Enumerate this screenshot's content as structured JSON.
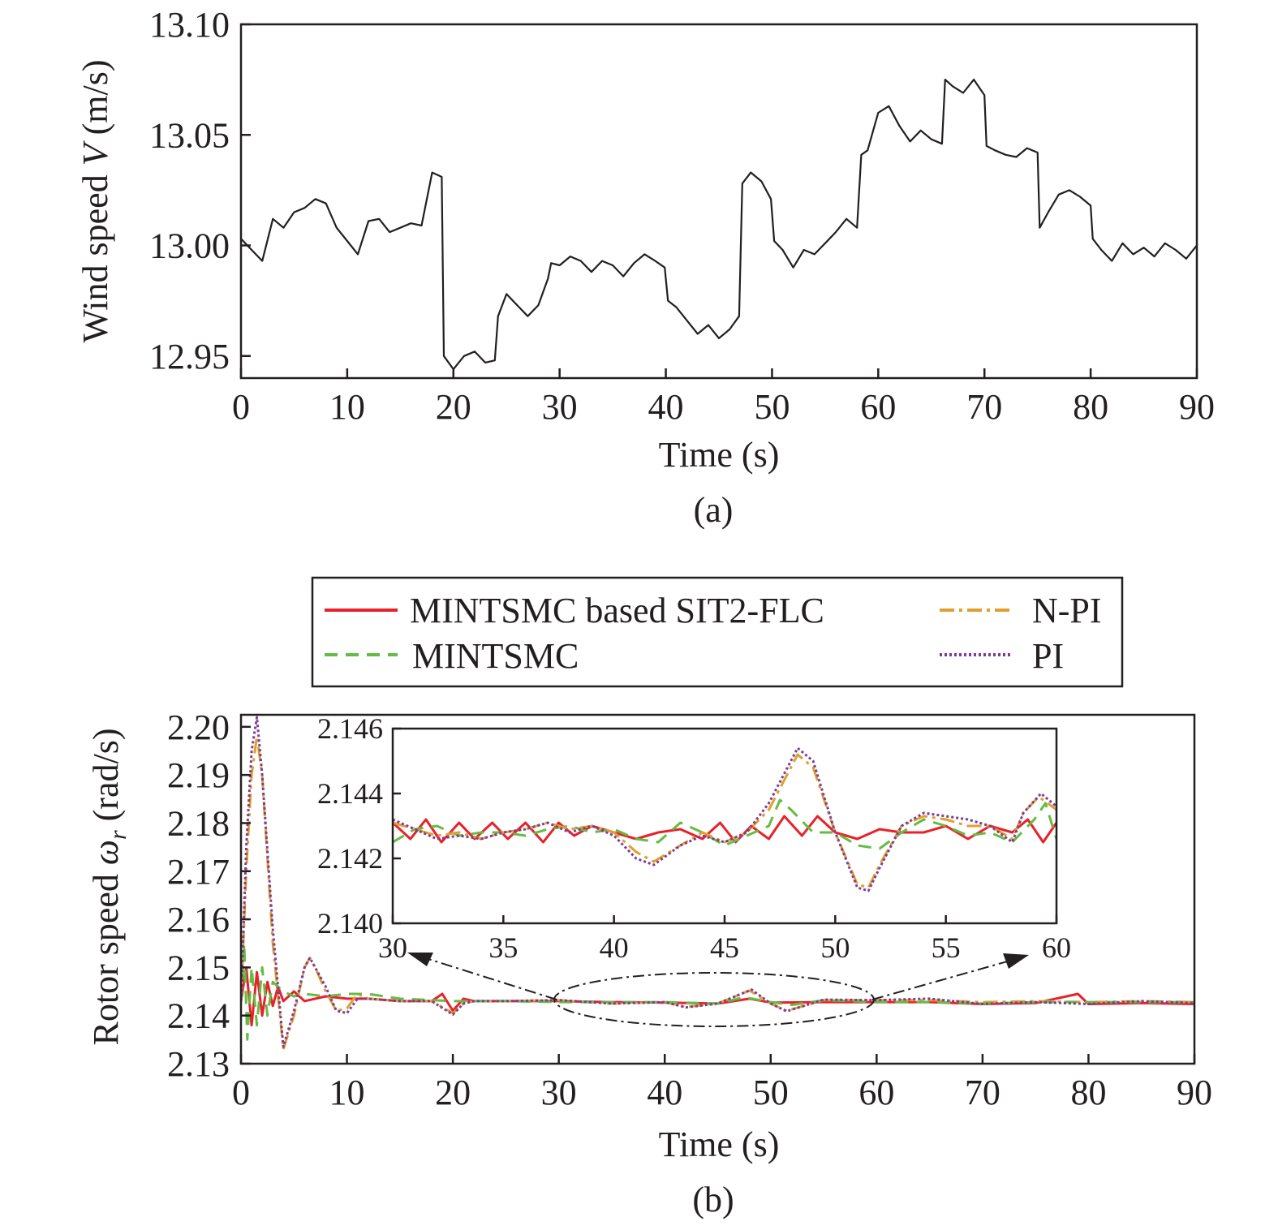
{
  "chart_data": [
    {
      "id": "a",
      "type": "line",
      "caption": "(a)",
      "xlabel": "Time (s)",
      "ylabel_parts": [
        "Wind speed ",
        "V",
        " (m/s)"
      ],
      "xlim": [
        0,
        90
      ],
      "ylim": [
        12.94,
        13.1
      ],
      "xticks": [
        0,
        10,
        20,
        30,
        40,
        50,
        60,
        70,
        80,
        90
      ],
      "yticks": [
        12.95,
        13.0,
        13.05,
        13.1
      ],
      "ytick_labels": [
        "12.95",
        "13.00",
        "13.05",
        "13.10"
      ],
      "grid": false,
      "series": [
        {
          "color": "#231f20",
          "style": "solid",
          "x": [
            0,
            1,
            2,
            3,
            4,
            5,
            6,
            7,
            8,
            9,
            10,
            11,
            12,
            13,
            14,
            15,
            16,
            17,
            18,
            18.9,
            19.1,
            20,
            21,
            22,
            23,
            23.9,
            24.2,
            25,
            26,
            27,
            28,
            28.9,
            29.2,
            30,
            31,
            32,
            33,
            34,
            35,
            36,
            37,
            38,
            39,
            39.9,
            40.2,
            41,
            42,
            43,
            44,
            45,
            46,
            46.9,
            47.2,
            48,
            49,
            49.9,
            50.2,
            51,
            52,
            53,
            54,
            55,
            56,
            57,
            58,
            58.4,
            59,
            60,
            61,
            62,
            63,
            64,
            65,
            66,
            66.3,
            67,
            68,
            69,
            70,
            70.2,
            71,
            72,
            73,
            74,
            75,
            75.2,
            76,
            77,
            78,
            79,
            80,
            80.2,
            81,
            82,
            83,
            84,
            85,
            86,
            87,
            88,
            89,
            90
          ],
          "y": [
            13.003,
            12.998,
            12.993,
            13.012,
            13.008,
            13.015,
            13.017,
            13.021,
            13.019,
            13.008,
            13.002,
            12.996,
            13.011,
            13.012,
            13.006,
            13.008,
            13.01,
            13.009,
            13.033,
            13.031,
            12.95,
            12.944,
            12.95,
            12.952,
            12.947,
            12.948,
            12.968,
            12.978,
            12.973,
            12.968,
            12.973,
            12.985,
            12.992,
            12.991,
            12.995,
            12.993,
            12.988,
            12.993,
            12.991,
            12.986,
            12.992,
            12.996,
            12.993,
            12.99,
            12.975,
            12.972,
            12.966,
            12.96,
            12.964,
            12.958,
            12.962,
            12.968,
            13.028,
            13.033,
            13.029,
            13.021,
            13.002,
            12.998,
            12.99,
            12.998,
            12.996,
            13.001,
            13.006,
            13.012,
            13.008,
            13.041,
            13.043,
            13.06,
            13.063,
            13.054,
            13.047,
            13.052,
            13.048,
            13.046,
            13.075,
            13.072,
            13.069,
            13.075,
            13.068,
            13.045,
            13.043,
            13.041,
            13.04,
            13.044,
            13.042,
            13.008,
            13.015,
            13.023,
            13.025,
            13.022,
            13.018,
            13.003,
            12.998,
            12.993,
            13.001,
            12.996,
            12.999,
            12.995,
            13.001,
            12.998,
            12.994,
            13.0
          ]
        }
      ]
    },
    {
      "id": "b",
      "type": "line",
      "caption": "(b)",
      "xlabel": "Time (s)",
      "ylabel_parts": [
        "Rotor speed ",
        "ω",
        "r",
        " (rad/s)"
      ],
      "xlim": [
        0,
        90
      ],
      "ylim": [
        2.13,
        2.2025
      ],
      "xticks": [
        0,
        10,
        20,
        30,
        40,
        50,
        60,
        70,
        80,
        90
      ],
      "yticks": [
        2.13,
        2.14,
        2.15,
        2.16,
        2.17,
        2.18,
        2.19,
        2.2
      ],
      "ytick_labels": [
        "2.13",
        "2.14",
        "2.15",
        "2.16",
        "2.17",
        "2.18",
        "2.19",
        "2.20"
      ],
      "grid": false,
      "legend_position": "top",
      "legend": [
        "MINTSMC based SIT2-FLC",
        "N-PI",
        "MINTSMC",
        "PI"
      ],
      "series": [
        {
          "name": "MINTSMC based SIT2-FLC",
          "color": "#e8212a",
          "style": "solid",
          "x": [
            0,
            0.5,
            1,
            1.5,
            2,
            2.5,
            3,
            3.5,
            4,
            5,
            6,
            8,
            10,
            12,
            15,
            18,
            19,
            20,
            21,
            22,
            25,
            30,
            35,
            40,
            45,
            48,
            50,
            55,
            60,
            65,
            70,
            75,
            79,
            80,
            85,
            90
          ],
          "y": [
            2.143,
            2.15,
            2.138,
            2.149,
            2.14,
            2.147,
            2.142,
            2.146,
            2.143,
            2.145,
            2.143,
            2.144,
            2.1435,
            2.1435,
            2.143,
            2.143,
            2.1445,
            2.141,
            2.1435,
            2.143,
            2.143,
            2.143,
            2.1428,
            2.1427,
            2.1425,
            2.1435,
            2.1427,
            2.1428,
            2.1428,
            2.1428,
            2.1424,
            2.1426,
            2.1445,
            2.1424,
            2.1426,
            2.1424
          ]
        },
        {
          "name": "N-PI",
          "color": "#e0a030",
          "style": "dashdot",
          "x": [
            0,
            0.5,
            1,
            1.5,
            2,
            3,
            4,
            5,
            6,
            6.5,
            7,
            8,
            9,
            10,
            11,
            12,
            15,
            18,
            20,
            21,
            22,
            25,
            30,
            35,
            40,
            42,
            45,
            48,
            50,
            51.5,
            55,
            60,
            65,
            70,
            75,
            80,
            85,
            90
          ],
          "y": [
            2.143,
            2.17,
            2.19,
            2.198,
            2.19,
            2.155,
            2.133,
            2.14,
            2.15,
            2.152,
            2.15,
            2.145,
            2.141,
            2.1415,
            2.1445,
            2.1435,
            2.143,
            2.143,
            2.1405,
            2.1425,
            2.143,
            2.143,
            2.1432,
            2.1425,
            2.1428,
            2.1418,
            2.1425,
            2.1452,
            2.1425,
            2.141,
            2.1432,
            2.1432,
            2.1432,
            2.1428,
            2.143,
            2.1428,
            2.143,
            2.1428
          ]
        },
        {
          "name": "MINTSMC",
          "color": "#66bb44",
          "style": "dashed",
          "x": [
            0,
            0.3,
            0.6,
            1,
            1.5,
            2,
            2.5,
            3,
            4,
            5,
            6,
            8,
            10,
            12,
            15,
            20,
            25,
            30,
            35,
            40,
            45,
            47.5,
            50,
            52,
            55,
            60,
            65,
            70,
            75,
            80,
            85,
            90
          ],
          "y": [
            2.143,
            2.155,
            2.135,
            2.15,
            2.138,
            2.15,
            2.14,
            2.147,
            2.145,
            2.144,
            2.1445,
            2.144,
            2.1445,
            2.1445,
            2.1435,
            2.143,
            2.143,
            2.1428,
            2.1428,
            2.1428,
            2.1425,
            2.1438,
            2.1428,
            2.1422,
            2.1432,
            2.1428,
            2.1428,
            2.1425,
            2.1428,
            2.1428,
            2.1428,
            2.1428
          ]
        },
        {
          "name": "PI",
          "color": "#7d3c98",
          "style": "dotted",
          "x": [
            0,
            0.5,
            1,
            1.5,
            2,
            3,
            4,
            5,
            6,
            6.5,
            7,
            8,
            9,
            10,
            11,
            12,
            15,
            18,
            20,
            21,
            22,
            25,
            30,
            35,
            40,
            42,
            45,
            48.2,
            50,
            51.5,
            55,
            60,
            65,
            70,
            75,
            80,
            85,
            90
          ],
          "y": [
            2.143,
            2.175,
            2.195,
            2.202,
            2.19,
            2.158,
            2.1335,
            2.141,
            2.15,
            2.152,
            2.15,
            2.146,
            2.141,
            2.1405,
            2.1435,
            2.1435,
            2.143,
            2.143,
            2.1402,
            2.1425,
            2.143,
            2.143,
            2.1432,
            2.1425,
            2.1428,
            2.1417,
            2.1425,
            2.1454,
            2.1425,
            2.1409,
            2.1433,
            2.1432,
            2.1435,
            2.1424,
            2.1428,
            2.1424,
            2.143,
            2.1426
          ]
        }
      ]
    },
    {
      "id": "b-inset",
      "type": "line",
      "xlim": [
        30,
        60
      ],
      "ylim": [
        2.14,
        2.146
      ],
      "xticks": [
        30,
        35,
        40,
        45,
        50,
        55,
        60
      ],
      "yticks": [
        2.14,
        2.142,
        2.144,
        2.146
      ],
      "ytick_labels": [
        "2.140",
        "2.142",
        "2.144",
        "2.146"
      ],
      "grid": false,
      "series": [
        {
          "name": "MINTSMC based SIT2-FLC",
          "color": "#e8212a",
          "style": "solid",
          "x": [
            30,
            30.8,
            31.5,
            32.2,
            33,
            33.7,
            34.5,
            35.2,
            36,
            36.8,
            37.5,
            38.2,
            39,
            40,
            41,
            42,
            43,
            44,
            44.8,
            45.5,
            46.2,
            47,
            47.7,
            48.5,
            49.2,
            50,
            51,
            52,
            53,
            54,
            55,
            56,
            57,
            58,
            58.7,
            59.4,
            60
          ],
          "y": [
            2.1431,
            2.1426,
            2.1432,
            2.1425,
            2.1431,
            2.1426,
            2.1431,
            2.1426,
            2.1431,
            2.1425,
            2.1431,
            2.1427,
            2.143,
            2.1428,
            2.1426,
            2.1428,
            2.1429,
            2.1426,
            2.1431,
            2.1425,
            2.143,
            2.1426,
            2.1433,
            2.1427,
            2.1433,
            2.1428,
            2.1426,
            2.1429,
            2.1428,
            2.1428,
            2.143,
            2.1426,
            2.143,
            2.1428,
            2.1432,
            2.1425,
            2.1431
          ]
        },
        {
          "name": "MINTSMC",
          "color": "#66bb44",
          "style": "dashed",
          "x": [
            30,
            31,
            32,
            33,
            34,
            35,
            36,
            37,
            38,
            39,
            40,
            41,
            42,
            43,
            44,
            45,
            46,
            47,
            47.5,
            48,
            49,
            50,
            51,
            52,
            53,
            54,
            55,
            56,
            57,
            58,
            59,
            59.5,
            60
          ],
          "y": [
            2.1425,
            2.1429,
            2.143,
            2.1427,
            2.1428,
            2.1428,
            2.1427,
            2.1429,
            2.143,
            2.1428,
            2.1429,
            2.1426,
            2.1425,
            2.1431,
            2.1428,
            2.1424,
            2.1427,
            2.143,
            2.1438,
            2.1435,
            2.1428,
            2.1428,
            2.1424,
            2.1423,
            2.1428,
            2.1432,
            2.143,
            2.1427,
            2.1428,
            2.1425,
            2.1432,
            2.1437,
            2.1426
          ]
        },
        {
          "name": "N-PI",
          "color": "#e0a030",
          "style": "dashdot",
          "x": [
            30,
            31,
            32,
            33,
            34,
            35,
            36,
            37,
            38,
            39,
            40,
            41,
            41.8,
            43,
            44,
            45,
            46,
            47,
            48.3,
            49,
            50,
            51,
            51.5,
            52,
            53,
            54,
            55,
            56,
            57,
            58,
            58.5,
            59.2,
            60
          ],
          "y": [
            2.1431,
            2.1429,
            2.1427,
            2.1428,
            2.1426,
            2.1428,
            2.1429,
            2.1431,
            2.1429,
            2.143,
            2.1428,
            2.1422,
            2.1419,
            2.1424,
            2.1428,
            2.1425,
            2.1428,
            2.1435,
            2.1452,
            2.1448,
            2.1428,
            2.1412,
            2.1411,
            2.1418,
            2.143,
            2.1433,
            2.1432,
            2.143,
            2.143,
            2.1426,
            2.1434,
            2.1439,
            2.1435
          ]
        },
        {
          "name": "PI",
          "color": "#7d3c98",
          "style": "dotted",
          "x": [
            30,
            31,
            32,
            33,
            34,
            35,
            36,
            37,
            38,
            39,
            40,
            41,
            41.8,
            43,
            44,
            45,
            46,
            47,
            48.3,
            49,
            50,
            51,
            51.5,
            52,
            53,
            54,
            55,
            56,
            57,
            58,
            58.5,
            59.3,
            60
          ],
          "y": [
            2.1432,
            2.1429,
            2.1426,
            2.1427,
            2.1426,
            2.1428,
            2.1429,
            2.1431,
            2.1428,
            2.143,
            2.1427,
            2.142,
            2.1418,
            2.1424,
            2.1427,
            2.1425,
            2.1428,
            2.1437,
            2.1454,
            2.145,
            2.1428,
            2.1411,
            2.141,
            2.1417,
            2.143,
            2.1434,
            2.1433,
            2.1432,
            2.143,
            2.1425,
            2.1434,
            2.144,
            2.1436
          ]
        }
      ]
    }
  ]
}
